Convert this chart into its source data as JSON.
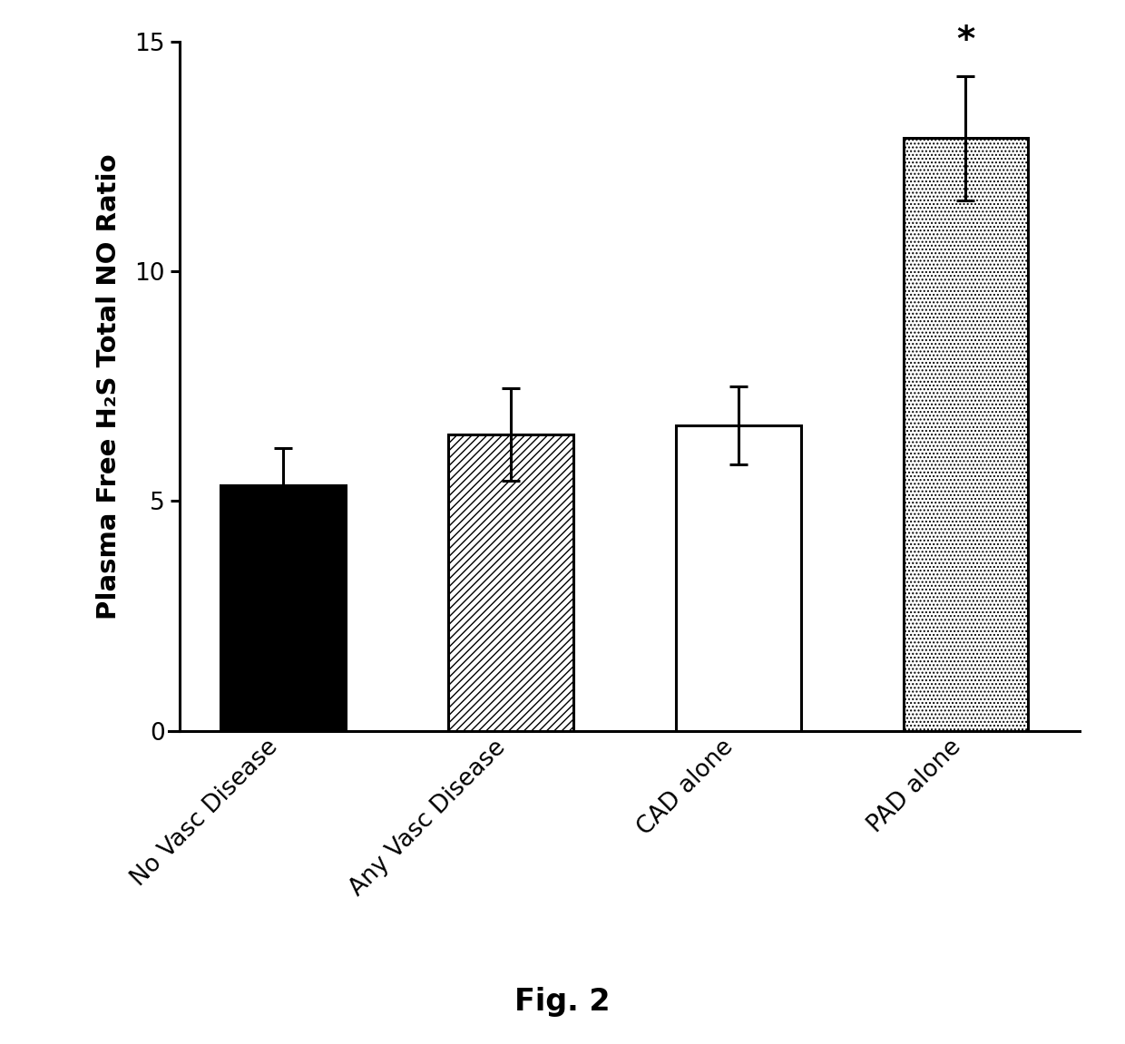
{
  "categories": [
    "No Vasc Disease",
    "Any Vasc Disease",
    "CAD alone",
    "PAD alone"
  ],
  "values": [
    5.35,
    6.45,
    6.65,
    12.9
  ],
  "errors": [
    0.8,
    1.0,
    0.85,
    1.35
  ],
  "bar_facecolors": [
    "#000000",
    "#ffffff",
    "#ffffff",
    "#ffffff"
  ],
  "bar_edgecolors": [
    "#000000",
    "#000000",
    "#000000",
    "#000000"
  ],
  "bar_hatches": [
    null,
    "////",
    null,
    "...."
  ],
  "significance_bar": 3,
  "significance_symbol": "*",
  "ylabel": "Plasma Free H₂S Total NO Ratio",
  "figure_label": "Fig. 2",
  "ylim": [
    0,
    15
  ],
  "yticks": [
    0,
    5,
    10,
    15
  ],
  "bar_width": 0.55,
  "label_fontsize": 21,
  "tick_fontsize": 19,
  "fig_label_fontsize": 24,
  "background_color": "#ffffff",
  "error_cap_size": 7,
  "linewidth": 2.2
}
